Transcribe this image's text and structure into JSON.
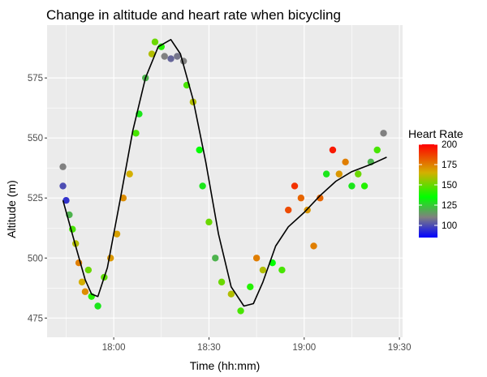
{
  "chart_data": {
    "type": "scatter",
    "title": "Change in altitude and heart rate when bicycling",
    "xlabel": "Time (hh:mm)",
    "ylabel": "Altitude (m)",
    "x_ticks": [
      "18:00",
      "18:30",
      "19:00",
      "19:30"
    ],
    "y_ticks": [
      475,
      500,
      525,
      550,
      575
    ],
    "xlim": [
      "17:39",
      "19:31"
    ],
    "ylim": [
      467,
      597
    ],
    "grid": true,
    "legend": {
      "title": "Heart Rate",
      "position": "right",
      "ticks": [
        100,
        125,
        150,
        175,
        200
      ],
      "range": [
        85,
        200
      ],
      "colors": [
        "#0000ff",
        "#808080",
        "#00ff00",
        "#d4b000",
        "#ff0000"
      ]
    },
    "smooth_line": {
      "name": "",
      "x": [
        "17:44",
        "17:48",
        "17:51",
        "17:53",
        "17:55",
        "17:58",
        "18:02",
        "18:06",
        "18:10",
        "18:14",
        "18:18",
        "18:21",
        "18:25",
        "18:29",
        "18:33",
        "18:37",
        "18:41",
        "18:44",
        "18:47",
        "18:51",
        "18:55",
        "19:00",
        "19:05",
        "19:10",
        "19:15",
        "19:21",
        "19:26"
      ],
      "y": [
        524,
        505,
        491,
        485,
        484,
        496,
        524,
        553,
        575,
        588,
        591,
        585,
        566,
        540,
        510,
        488,
        480,
        481,
        490,
        505,
        513,
        519,
        526,
        532,
        536,
        539,
        542
      ]
    },
    "points": [
      {
        "x": "17:44",
        "y": 538,
        "hr": 110
      },
      {
        "x": "17:44",
        "y": 530,
        "hr": 100
      },
      {
        "x": "17:45",
        "y": 524,
        "hr": 95
      },
      {
        "x": "17:46",
        "y": 518,
        "hr": 120
      },
      {
        "x": "17:47",
        "y": 512,
        "hr": 145
      },
      {
        "x": "17:48",
        "y": 506,
        "hr": 160
      },
      {
        "x": "17:49",
        "y": 498,
        "hr": 175
      },
      {
        "x": "17:50",
        "y": 490,
        "hr": 165
      },
      {
        "x": "17:51",
        "y": 486,
        "hr": 172
      },
      {
        "x": "17:52",
        "y": 495,
        "hr": 150
      },
      {
        "x": "17:53",
        "y": 484,
        "hr": 140
      },
      {
        "x": "17:55",
        "y": 480,
        "hr": 130
      },
      {
        "x": "17:57",
        "y": 492,
        "hr": 148
      },
      {
        "x": "17:59",
        "y": 500,
        "hr": 170
      },
      {
        "x": "18:01",
        "y": 510,
        "hr": 168
      },
      {
        "x": "18:03",
        "y": 525,
        "hr": 172
      },
      {
        "x": "18:05",
        "y": 535,
        "hr": 165
      },
      {
        "x": "18:07",
        "y": 552,
        "hr": 145
      },
      {
        "x": "18:08",
        "y": 560,
        "hr": 130
      },
      {
        "x": "18:10",
        "y": 575,
        "hr": 120
      },
      {
        "x": "18:12",
        "y": 585,
        "hr": 160
      },
      {
        "x": "18:13",
        "y": 590,
        "hr": 150
      },
      {
        "x": "18:15",
        "y": 588,
        "hr": 140
      },
      {
        "x": "18:16",
        "y": 584,
        "hr": 110
      },
      {
        "x": "18:18",
        "y": 583,
        "hr": 105
      },
      {
        "x": "18:20",
        "y": 584,
        "hr": 108
      },
      {
        "x": "18:22",
        "y": 582,
        "hr": 110
      },
      {
        "x": "18:23",
        "y": 572,
        "hr": 145
      },
      {
        "x": "18:25",
        "y": 565,
        "hr": 160
      },
      {
        "x": "18:27",
        "y": 545,
        "hr": 135
      },
      {
        "x": "18:28",
        "y": 530,
        "hr": 130
      },
      {
        "x": "18:30",
        "y": 515,
        "hr": 150
      },
      {
        "x": "18:32",
        "y": 500,
        "hr": 120
      },
      {
        "x": "18:34",
        "y": 490,
        "hr": 150
      },
      {
        "x": "18:37",
        "y": 485,
        "hr": 160
      },
      {
        "x": "18:40",
        "y": 478,
        "hr": 145
      },
      {
        "x": "18:43",
        "y": 488,
        "hr": 140
      },
      {
        "x": "18:45",
        "y": 500,
        "hr": 175
      },
      {
        "x": "18:47",
        "y": 495,
        "hr": 160
      },
      {
        "x": "18:50",
        "y": 498,
        "hr": 135
      },
      {
        "x": "18:53",
        "y": 495,
        "hr": 145
      },
      {
        "x": "18:55",
        "y": 520,
        "hr": 185
      },
      {
        "x": "18:57",
        "y": 530,
        "hr": 190
      },
      {
        "x": "18:59",
        "y": 525,
        "hr": 180
      },
      {
        "x": "19:01",
        "y": 520,
        "hr": 170
      },
      {
        "x": "19:03",
        "y": 505,
        "hr": 175
      },
      {
        "x": "19:05",
        "y": 525,
        "hr": 180
      },
      {
        "x": "19:07",
        "y": 535,
        "hr": 130
      },
      {
        "x": "19:09",
        "y": 545,
        "hr": 195
      },
      {
        "x": "19:11",
        "y": 535,
        "hr": 170
      },
      {
        "x": "19:13",
        "y": 540,
        "hr": 175
      },
      {
        "x": "19:15",
        "y": 530,
        "hr": 130
      },
      {
        "x": "19:17",
        "y": 535,
        "hr": 150
      },
      {
        "x": "19:19",
        "y": 530,
        "hr": 140
      },
      {
        "x": "19:21",
        "y": 540,
        "hr": 120
      },
      {
        "x": "19:23",
        "y": 545,
        "hr": 145
      },
      {
        "x": "19:25",
        "y": 552,
        "hr": 110
      }
    ]
  }
}
